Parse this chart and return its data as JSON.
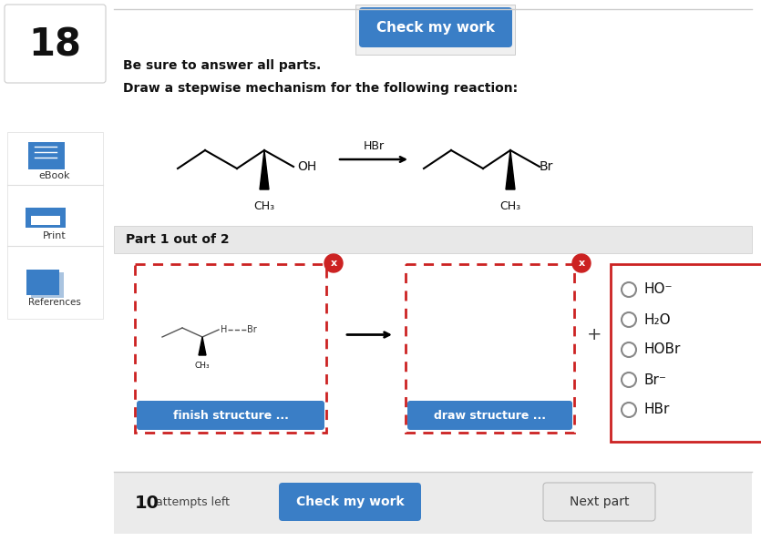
{
  "bg_color": "#ffffff",
  "sidebar_bg": "#f7f7f7",
  "number": "18",
  "top_button_text": "Check my work",
  "top_button_color": "#3a7ec6",
  "instructions_line1": "Be sure to answer all parts.",
  "instructions_line2": "Draw a stepwise mechanism for the following reaction:",
  "hbr_label": "HBr",
  "part_label": "Part 1 out of 2",
  "part_bar_color": "#e8e8e8",
  "finish_btn_text": "finish structure ...",
  "draw_btn_text": "draw structure ...",
  "btn_color": "#3a7ec6",
  "radio_options": [
    "HO⁻",
    "H₂O",
    "HOBr",
    "Br⁻",
    "HBr"
  ],
  "check_btn_text": "Check my work",
  "next_btn_text": "Next part",
  "next_btn_color": "#e8e8e8",
  "red_border": "#cc2222",
  "x_badge_color": "#cc2222",
  "sidebar_icon_color": "#3a7ec6",
  "sidebar_items": [
    "eBook",
    "Print",
    "References"
  ],
  "bottom_bar_color": "#ebebeb"
}
